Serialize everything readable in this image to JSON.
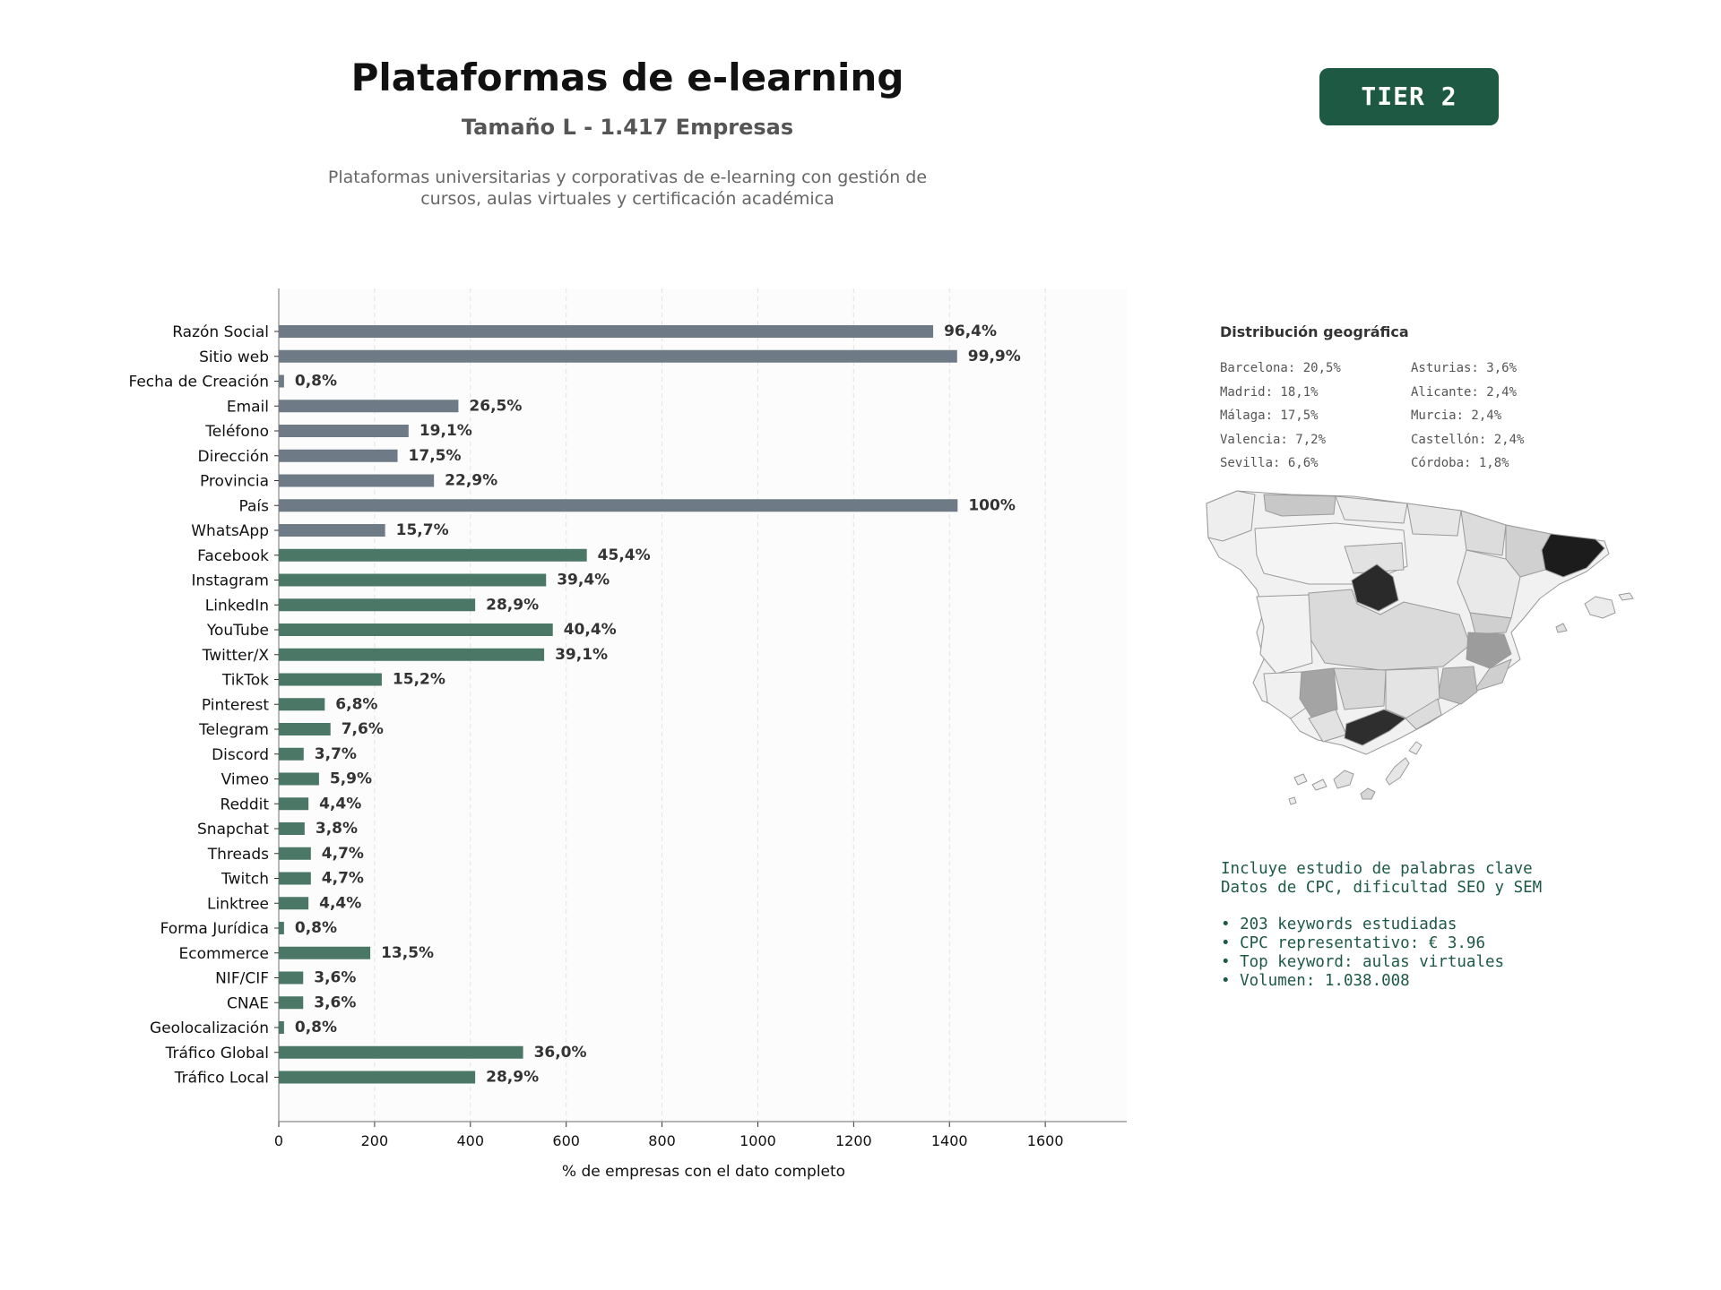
{
  "header": {
    "title": "Plataformas de e-learning",
    "subtitle": "Tamaño L - 1.417 Empresas",
    "description_line1": "Plataformas universitarias y corporativas de e-learning con gestión de",
    "description_line2": "cursos, aulas virtuales y certificación académica",
    "badge": "TIER 2"
  },
  "colors": {
    "accent": "#1e5944",
    "bar_gray": "#6e7b86",
    "bar_green": "#4a7766"
  },
  "chart_data": {
    "type": "bar",
    "orientation": "horizontal",
    "xlabel": "% de empresas con el dato completo",
    "xlim": [
      0,
      1770
    ],
    "xticks": [
      0,
      200,
      400,
      600,
      800,
      1000,
      1200,
      1400,
      1600
    ],
    "grid": "vertical-dashed",
    "categories": [
      "Razón Social",
      "Sitio web",
      "Fecha de Creación",
      "Email",
      "Teléfono",
      "Dirección",
      "Provincia",
      "País",
      "WhatsApp",
      "Facebook",
      "Instagram",
      "LinkedIn",
      "YouTube",
      "Twitter/X",
      "TikTok",
      "Pinterest",
      "Telegram",
      "Discord",
      "Vimeo",
      "Reddit",
      "Snapchat",
      "Threads",
      "Twitch",
      "Linktree",
      "Forma Jurídica",
      "Ecommerce",
      "NIF/CIF",
      "CNAE",
      "Geolocalización",
      "Tráfico Global",
      "Tráfico Local"
    ],
    "values": [
      1366,
      1416,
      11,
      375,
      271,
      248,
      324,
      1417,
      222,
      643,
      558,
      410,
      572,
      554,
      215,
      96,
      108,
      52,
      84,
      62,
      54,
      67,
      67,
      62,
      11,
      191,
      51,
      51,
      11,
      510,
      410
    ],
    "labels": [
      "96,4%",
      "99,9%",
      "0,8%",
      "26,5%",
      "19,1%",
      "17,5%",
      "22,9%",
      "100%",
      "15,7%",
      "45,4%",
      "39,4%",
      "28,9%",
      "40,4%",
      "39,1%",
      "15,2%",
      "6,8%",
      "7,6%",
      "3,7%",
      "5,9%",
      "4,4%",
      "3,8%",
      "4,7%",
      "4,7%",
      "4,4%",
      "0,8%",
      "13,5%",
      "3,6%",
      "3,6%",
      "0,8%",
      "36,0%",
      "28,9%"
    ],
    "groups": [
      "gray",
      "gray",
      "gray",
      "gray",
      "gray",
      "gray",
      "gray",
      "gray",
      "gray",
      "green",
      "green",
      "green",
      "green",
      "green",
      "green",
      "green",
      "green",
      "green",
      "green",
      "green",
      "green",
      "green",
      "green",
      "green",
      "green",
      "green",
      "green",
      "green",
      "green",
      "green",
      "green"
    ]
  },
  "geo": {
    "title": "Distribución geográfica",
    "col1": [
      "Barcelona: 20,5%",
      "Madrid: 18,1%",
      "Málaga: 17,5%",
      "Valencia: 7,2%",
      "Sevilla: 6,6%"
    ],
    "col2": [
      "Asturias: 3,6%",
      "Alicante: 2,4%",
      "Murcia: 2,4%",
      "Castellón: 2,4%",
      "Córdoba: 1,8%"
    ],
    "map_icon": "spain-provinces-map"
  },
  "seo": {
    "line1": "Incluye estudio de palabras clave",
    "line2": "Datos de CPC, dificultad SEO y SEM",
    "bullets": [
      "• 203 keywords estudiadas",
      "• CPC representativo: € 3.96",
      "• Top keyword: aulas virtuales",
      "• Volumen: 1.038.008"
    ]
  }
}
